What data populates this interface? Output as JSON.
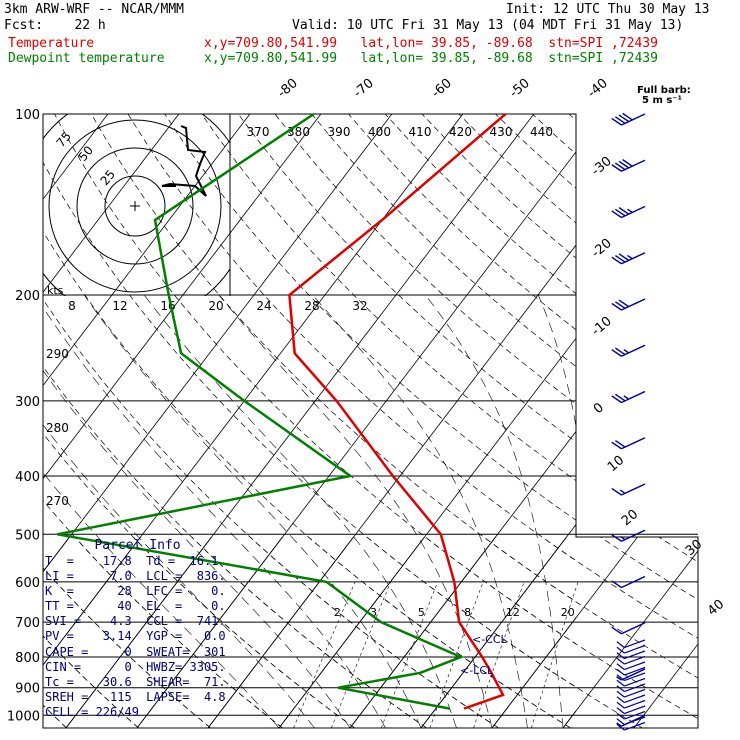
{
  "header": {
    "model": "3km ARW-WRF -- NCAR/MMM",
    "init": "Init: 12 UTC Thu 30 May 13",
    "fcst": "Fcst:    22 h",
    "valid": "Valid: 10 UTC Fri 31 May 13 (04 MDT Fri 31 May 13)",
    "temp_label": "Temperature",
    "temp_info": "x,y=709.80,541.99   lat,lon= 39.85, -89.68  stn=SPI ,72439",
    "dew_label": "Dewpoint temperature",
    "dew_info": "x,y=709.80,541.99   lat,lon= 39.85, -89.68  stn=SPI ,72439"
  },
  "barb_legend": {
    "line1": "Full barb:",
    "line2": "5 m s⁻¹"
  },
  "colors": {
    "temperature": "#e00000",
    "dewpoint": "#008000",
    "parcel_text": "#00007a",
    "wind": "#0000a0",
    "hodograph": "#000000"
  },
  "parcel": {
    "title": "Parcel Info",
    "rows": [
      "T  =    17.8  Td =  16.1",
      "LI =     7.0  LCL =  836.",
      "K  =      28  LFC =    0.",
      "TT =      40  EL  =    0.",
      "SVI =    4.3  CCL =  741.",
      "PV =    3.14  YGP =   0.0",
      "CAPE =     0  SWEAT=  301",
      "CIN =      0  HWBZ= 3305.",
      "Tc =    30.6  SHEAR=  71.",
      "SREH =   115  LAPSE=  4.8",
      "CELL = 226/49"
    ]
  },
  "annotations": {
    "lcl": "<-LCL",
    "ccl": "<-CCL",
    "hodo_units": "kts"
  },
  "chart_data": {
    "type": "line",
    "diagram": "skew-T log-p",
    "pressure_levels": [
      100,
      200,
      300,
      400,
      500,
      600,
      700,
      800,
      900,
      1000
    ],
    "pressure_labels": [
      "100",
      "200",
      "300",
      "400",
      "500",
      "600",
      "700",
      "800",
      "900",
      "1000"
    ],
    "ylim": [
      1000,
      100
    ],
    "isotherm_labels": [
      "-80",
      "-70",
      "-60",
      "-50",
      "-40",
      "-30",
      "-20",
      "-10",
      "0",
      "10",
      "20",
      "30",
      "40"
    ],
    "theta_labels_upper": [
      "370",
      "380",
      "390",
      "400",
      "410",
      "420",
      "430",
      "440"
    ],
    "theta_labels_left": [
      "290",
      "280",
      "270"
    ],
    "mixing_ratio_labels": [
      "2",
      "3",
      "5",
      "8",
      "12",
      "20"
    ],
    "series": [
      {
        "name": "Temperature",
        "points": [
          [
            100,
            -44
          ],
          [
            150,
            -50
          ],
          [
            200,
            -55
          ],
          [
            250,
            -48
          ],
          [
            300,
            -37
          ],
          [
            400,
            -21
          ],
          [
            500,
            -8
          ],
          [
            600,
            -1
          ],
          [
            700,
            4
          ],
          [
            800,
            11
          ],
          [
            850,
            14
          ],
          [
            925,
            18
          ],
          [
            975,
            14
          ]
        ]
      },
      {
        "name": "Dewpoint temperature",
        "points": [
          [
            100,
            -71
          ],
          [
            150,
            -82
          ],
          [
            200,
            -72
          ],
          [
            250,
            -64
          ],
          [
            300,
            -50
          ],
          [
            400,
            -27
          ],
          [
            500,
            -62
          ],
          [
            600,
            -19
          ],
          [
            700,
            -7
          ],
          [
            800,
            8
          ],
          [
            850,
            4
          ],
          [
            900,
            -6
          ],
          [
            975,
            12
          ]
        ]
      }
    ],
    "hodograph": {
      "ring_labels": [
        "75",
        "50",
        "25"
      ],
      "speed_axis_ticks": [
        "8",
        "12",
        "16",
        "20",
        "24",
        "28",
        "32"
      ]
    },
    "wind_barbs": {
      "speed_kts": [
        40,
        40,
        38,
        35,
        30,
        28,
        25,
        20,
        18,
        15,
        12,
        10,
        8,
        5
      ]
    }
  }
}
